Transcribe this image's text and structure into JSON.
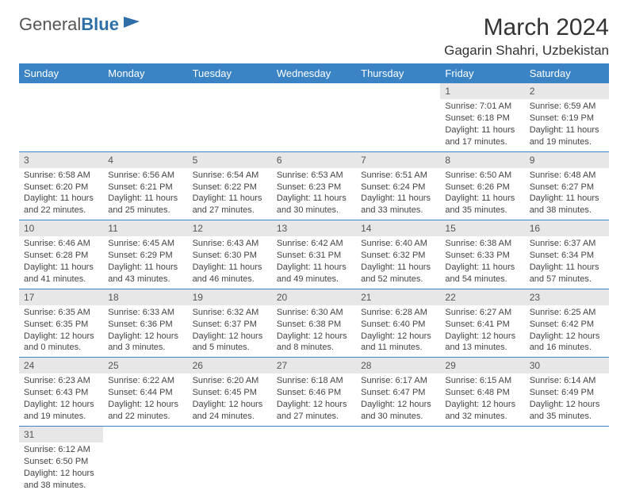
{
  "logo": {
    "textA": "General",
    "textB": "Blue"
  },
  "header": {
    "title": "March 2024",
    "location": "Gagarin Shahri, Uzbekistan"
  },
  "colors": {
    "header_bg": "#3a83c4",
    "header_text": "#ffffff",
    "daynum_bg": "#e7e7e7",
    "row_divider": "#3a83c4",
    "logo_blue": "#2f6fa8"
  },
  "weekdays": [
    "Sunday",
    "Monday",
    "Tuesday",
    "Wednesday",
    "Thursday",
    "Friday",
    "Saturday"
  ],
  "weeks": [
    [
      null,
      null,
      null,
      null,
      null,
      {
        "n": "1",
        "sr": "Sunrise: 7:01 AM",
        "ss": "Sunset: 6:18 PM",
        "d1": "Daylight: 11 hours",
        "d2": "and 17 minutes."
      },
      {
        "n": "2",
        "sr": "Sunrise: 6:59 AM",
        "ss": "Sunset: 6:19 PM",
        "d1": "Daylight: 11 hours",
        "d2": "and 19 minutes."
      }
    ],
    [
      {
        "n": "3",
        "sr": "Sunrise: 6:58 AM",
        "ss": "Sunset: 6:20 PM",
        "d1": "Daylight: 11 hours",
        "d2": "and 22 minutes."
      },
      {
        "n": "4",
        "sr": "Sunrise: 6:56 AM",
        "ss": "Sunset: 6:21 PM",
        "d1": "Daylight: 11 hours",
        "d2": "and 25 minutes."
      },
      {
        "n": "5",
        "sr": "Sunrise: 6:54 AM",
        "ss": "Sunset: 6:22 PM",
        "d1": "Daylight: 11 hours",
        "d2": "and 27 minutes."
      },
      {
        "n": "6",
        "sr": "Sunrise: 6:53 AM",
        "ss": "Sunset: 6:23 PM",
        "d1": "Daylight: 11 hours",
        "d2": "and 30 minutes."
      },
      {
        "n": "7",
        "sr": "Sunrise: 6:51 AM",
        "ss": "Sunset: 6:24 PM",
        "d1": "Daylight: 11 hours",
        "d2": "and 33 minutes."
      },
      {
        "n": "8",
        "sr": "Sunrise: 6:50 AM",
        "ss": "Sunset: 6:26 PM",
        "d1": "Daylight: 11 hours",
        "d2": "and 35 minutes."
      },
      {
        "n": "9",
        "sr": "Sunrise: 6:48 AM",
        "ss": "Sunset: 6:27 PM",
        "d1": "Daylight: 11 hours",
        "d2": "and 38 minutes."
      }
    ],
    [
      {
        "n": "10",
        "sr": "Sunrise: 6:46 AM",
        "ss": "Sunset: 6:28 PM",
        "d1": "Daylight: 11 hours",
        "d2": "and 41 minutes."
      },
      {
        "n": "11",
        "sr": "Sunrise: 6:45 AM",
        "ss": "Sunset: 6:29 PM",
        "d1": "Daylight: 11 hours",
        "d2": "and 43 minutes."
      },
      {
        "n": "12",
        "sr": "Sunrise: 6:43 AM",
        "ss": "Sunset: 6:30 PM",
        "d1": "Daylight: 11 hours",
        "d2": "and 46 minutes."
      },
      {
        "n": "13",
        "sr": "Sunrise: 6:42 AM",
        "ss": "Sunset: 6:31 PM",
        "d1": "Daylight: 11 hours",
        "d2": "and 49 minutes."
      },
      {
        "n": "14",
        "sr": "Sunrise: 6:40 AM",
        "ss": "Sunset: 6:32 PM",
        "d1": "Daylight: 11 hours",
        "d2": "and 52 minutes."
      },
      {
        "n": "15",
        "sr": "Sunrise: 6:38 AM",
        "ss": "Sunset: 6:33 PM",
        "d1": "Daylight: 11 hours",
        "d2": "and 54 minutes."
      },
      {
        "n": "16",
        "sr": "Sunrise: 6:37 AM",
        "ss": "Sunset: 6:34 PM",
        "d1": "Daylight: 11 hours",
        "d2": "and 57 minutes."
      }
    ],
    [
      {
        "n": "17",
        "sr": "Sunrise: 6:35 AM",
        "ss": "Sunset: 6:35 PM",
        "d1": "Daylight: 12 hours",
        "d2": "and 0 minutes."
      },
      {
        "n": "18",
        "sr": "Sunrise: 6:33 AM",
        "ss": "Sunset: 6:36 PM",
        "d1": "Daylight: 12 hours",
        "d2": "and 3 minutes."
      },
      {
        "n": "19",
        "sr": "Sunrise: 6:32 AM",
        "ss": "Sunset: 6:37 PM",
        "d1": "Daylight: 12 hours",
        "d2": "and 5 minutes."
      },
      {
        "n": "20",
        "sr": "Sunrise: 6:30 AM",
        "ss": "Sunset: 6:38 PM",
        "d1": "Daylight: 12 hours",
        "d2": "and 8 minutes."
      },
      {
        "n": "21",
        "sr": "Sunrise: 6:28 AM",
        "ss": "Sunset: 6:40 PM",
        "d1": "Daylight: 12 hours",
        "d2": "and 11 minutes."
      },
      {
        "n": "22",
        "sr": "Sunrise: 6:27 AM",
        "ss": "Sunset: 6:41 PM",
        "d1": "Daylight: 12 hours",
        "d2": "and 13 minutes."
      },
      {
        "n": "23",
        "sr": "Sunrise: 6:25 AM",
        "ss": "Sunset: 6:42 PM",
        "d1": "Daylight: 12 hours",
        "d2": "and 16 minutes."
      }
    ],
    [
      {
        "n": "24",
        "sr": "Sunrise: 6:23 AM",
        "ss": "Sunset: 6:43 PM",
        "d1": "Daylight: 12 hours",
        "d2": "and 19 minutes."
      },
      {
        "n": "25",
        "sr": "Sunrise: 6:22 AM",
        "ss": "Sunset: 6:44 PM",
        "d1": "Daylight: 12 hours",
        "d2": "and 22 minutes."
      },
      {
        "n": "26",
        "sr": "Sunrise: 6:20 AM",
        "ss": "Sunset: 6:45 PM",
        "d1": "Daylight: 12 hours",
        "d2": "and 24 minutes."
      },
      {
        "n": "27",
        "sr": "Sunrise: 6:18 AM",
        "ss": "Sunset: 6:46 PM",
        "d1": "Daylight: 12 hours",
        "d2": "and 27 minutes."
      },
      {
        "n": "28",
        "sr": "Sunrise: 6:17 AM",
        "ss": "Sunset: 6:47 PM",
        "d1": "Daylight: 12 hours",
        "d2": "and 30 minutes."
      },
      {
        "n": "29",
        "sr": "Sunrise: 6:15 AM",
        "ss": "Sunset: 6:48 PM",
        "d1": "Daylight: 12 hours",
        "d2": "and 32 minutes."
      },
      {
        "n": "30",
        "sr": "Sunrise: 6:14 AM",
        "ss": "Sunset: 6:49 PM",
        "d1": "Daylight: 12 hours",
        "d2": "and 35 minutes."
      }
    ],
    [
      {
        "n": "31",
        "sr": "Sunrise: 6:12 AM",
        "ss": "Sunset: 6:50 PM",
        "d1": "Daylight: 12 hours",
        "d2": "and 38 minutes."
      },
      null,
      null,
      null,
      null,
      null,
      null
    ]
  ]
}
